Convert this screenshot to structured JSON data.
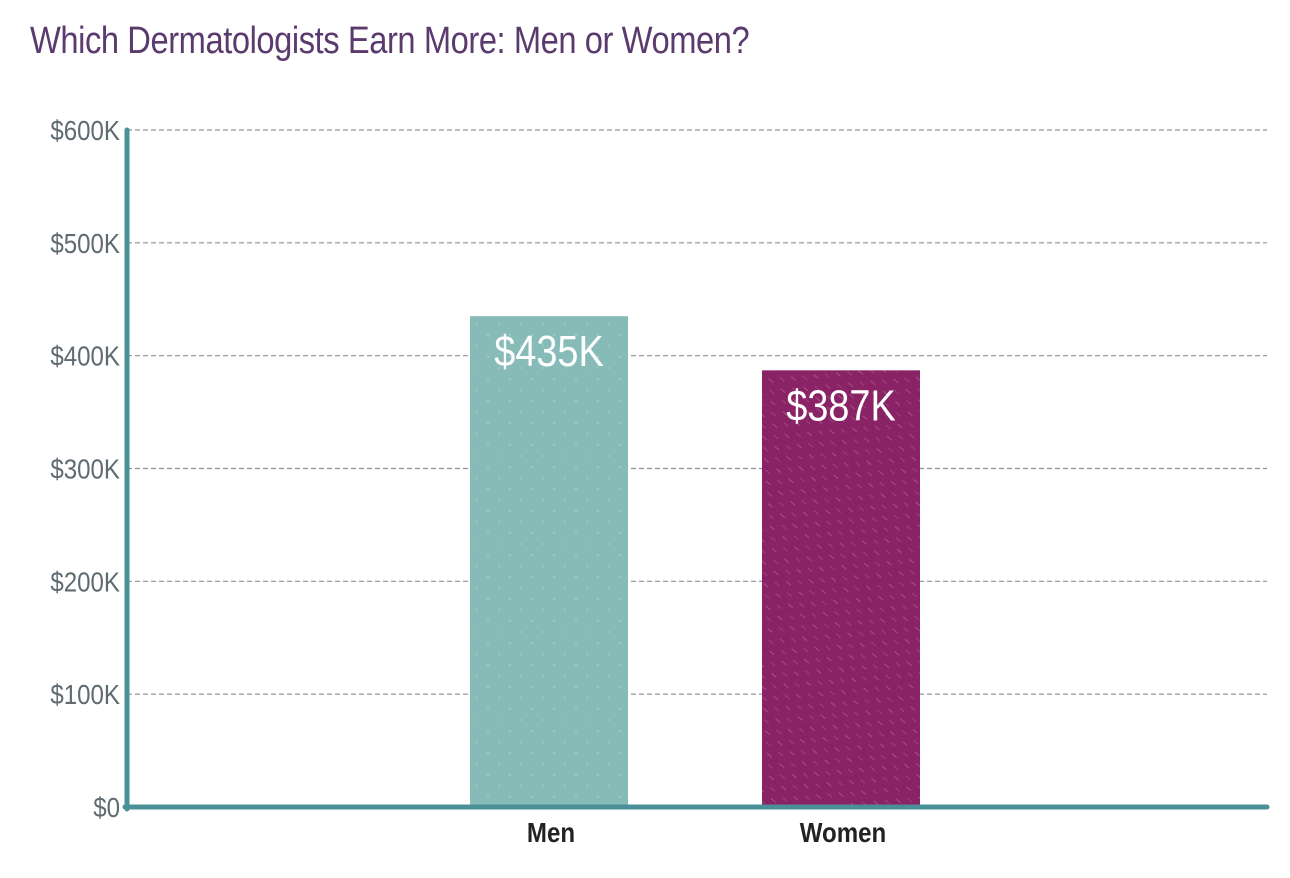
{
  "chart_data": {
    "type": "bar",
    "title": "Which Dermatologists Earn More: Men or Women?",
    "categories": [
      "Men",
      "Women"
    ],
    "values": [
      435,
      387
    ],
    "data_labels": [
      "$435K",
      "$387K"
    ],
    "ylim": [
      0,
      600
    ],
    "yticks": [
      0,
      100,
      200,
      300,
      400,
      500,
      600
    ],
    "ytick_labels": [
      "$0",
      "$100K",
      "$200K",
      "$300K",
      "$400K",
      "$500K",
      "$600K"
    ],
    "xlabel": "",
    "ylabel": "",
    "grid": true,
    "colors": {
      "bars": [
        "#86bbb8",
        "#8a2266"
      ],
      "axis": "#4a9098",
      "grid": "#8a9499",
      "title": "#5b3a6e"
    }
  }
}
